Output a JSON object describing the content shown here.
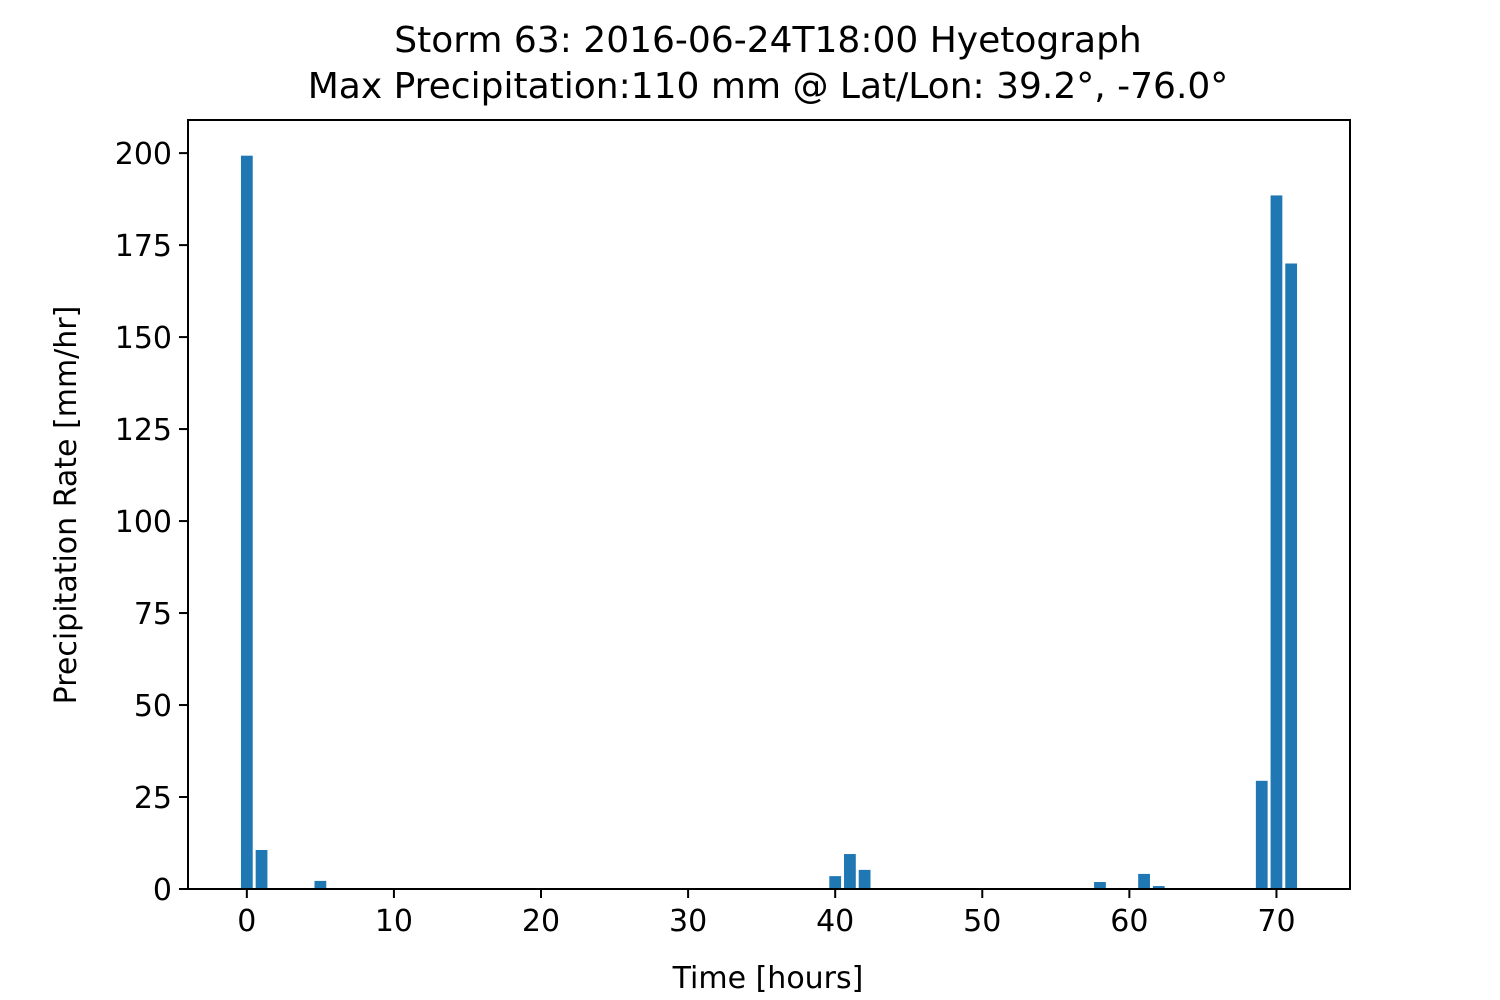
{
  "chart_data": {
    "type": "bar",
    "title": "Storm 63: 2016-06-24T18:00 Hyetograph",
    "subtitle": "Max Precipitation:110 mm @ Lat/Lon:  39.2°, -76.0°",
    "xlabel": "Time [hours]",
    "ylabel": "Precipitation Rate [mm/hr]",
    "xlim": [
      -4,
      75
    ],
    "ylim": [
      0,
      209
    ],
    "xticks": [
      0,
      10,
      20,
      30,
      40,
      50,
      60,
      70
    ],
    "yticks": [
      0,
      25,
      50,
      75,
      100,
      125,
      150,
      175,
      200
    ],
    "grid": false,
    "bar_color": "#1f77b4",
    "x": [
      0,
      1,
      5,
      40,
      41,
      42,
      58,
      61,
      62,
      69,
      70,
      71
    ],
    "values": [
      199.3,
      10.6,
      2.2,
      3.5,
      9.5,
      5.2,
      1.9,
      4.1,
      0.8,
      29.4,
      188.5,
      170.0
    ]
  }
}
